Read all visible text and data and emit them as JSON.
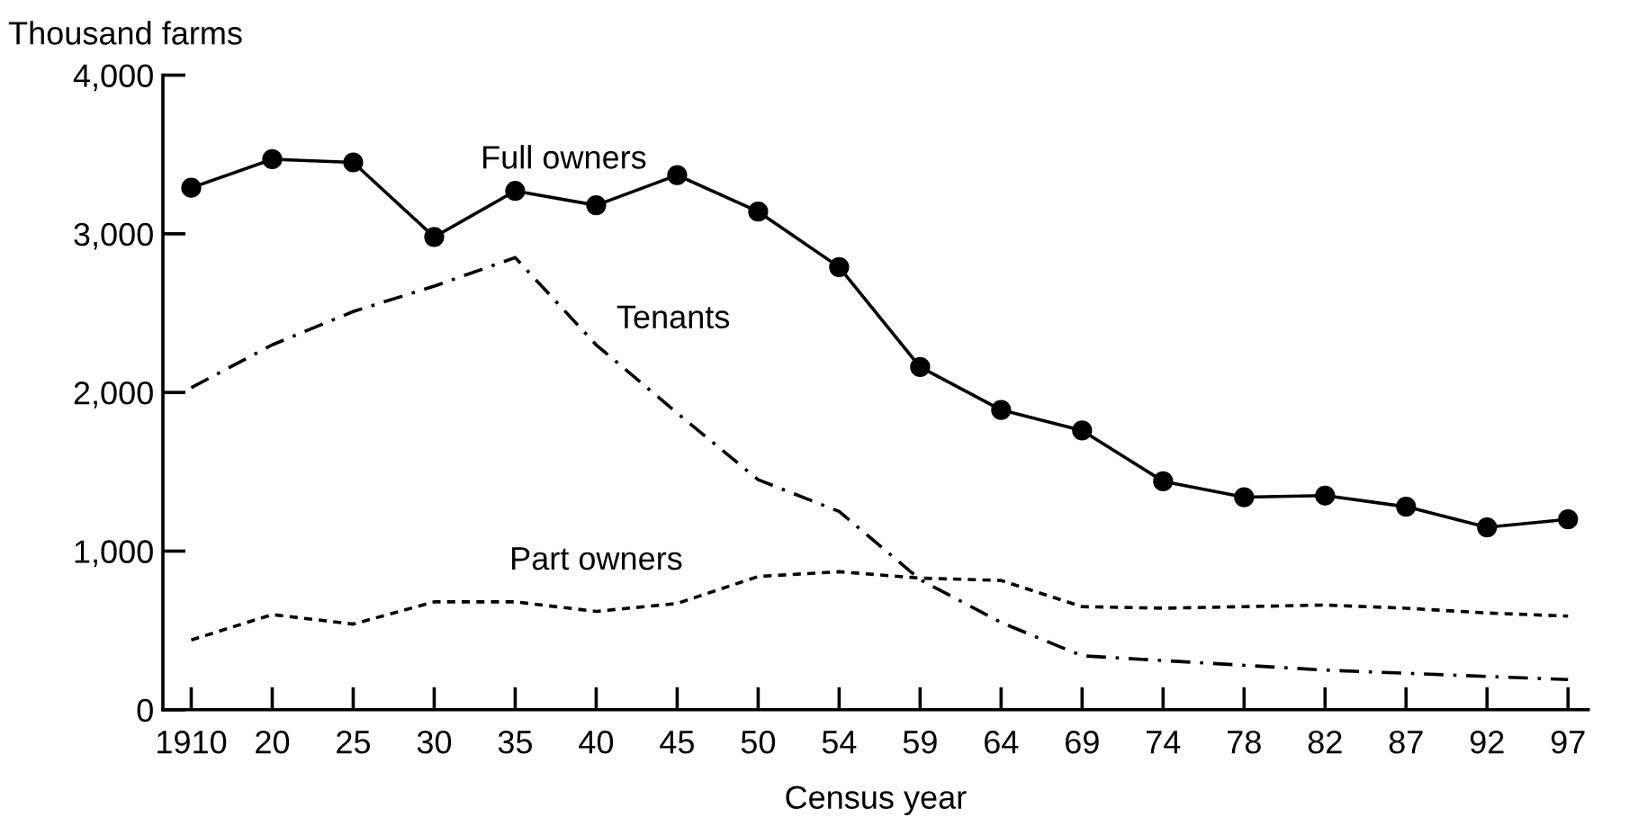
{
  "chart_data": {
    "type": "line",
    "ylabel": "Thousand farms",
    "xlabel": "Census year",
    "categories": [
      "1910",
      "20",
      "25",
      "30",
      "35",
      "40",
      "45",
      "50",
      "54",
      "59",
      "64",
      "69",
      "74",
      "78",
      "82",
      "87",
      "92",
      "97"
    ],
    "series": [
      {
        "name": "Full owners",
        "color": "#000000",
        "marker": "circle",
        "line_style": "solid",
        "values": [
          3290,
          3470,
          3450,
          2980,
          3270,
          3180,
          3370,
          3140,
          2790,
          2160,
          1890,
          1760,
          1440,
          1340,
          1350,
          1280,
          1150,
          1200
        ]
      },
      {
        "name": "Tenants",
        "color": "#000000",
        "marker": "none",
        "line_style": "dashdot",
        "values": [
          2030,
          2300,
          2510,
          2670,
          2850,
          2300,
          1870,
          1450,
          1250,
          820,
          550,
          340,
          310,
          280,
          250,
          230,
          210,
          190
        ]
      },
      {
        "name": "Part owners",
        "color": "#000000",
        "marker": "none",
        "line_style": "dashed",
        "values": [
          440,
          600,
          540,
          680,
          680,
          620,
          670,
          840,
          870,
          830,
          815,
          650,
          640,
          650,
          660,
          640,
          610,
          590
        ]
      }
    ],
    "ylim": [
      0,
      4000
    ],
    "yticks": [
      0,
      {
        "value": 1000,
        "label": "1,000"
      },
      {
        "value": 2000,
        "label": "2,000"
      },
      {
        "value": 3000,
        "label": "3,000"
      },
      {
        "value": 4000,
        "label": "4,000"
      }
    ],
    "grid": false,
    "legend": false
  }
}
